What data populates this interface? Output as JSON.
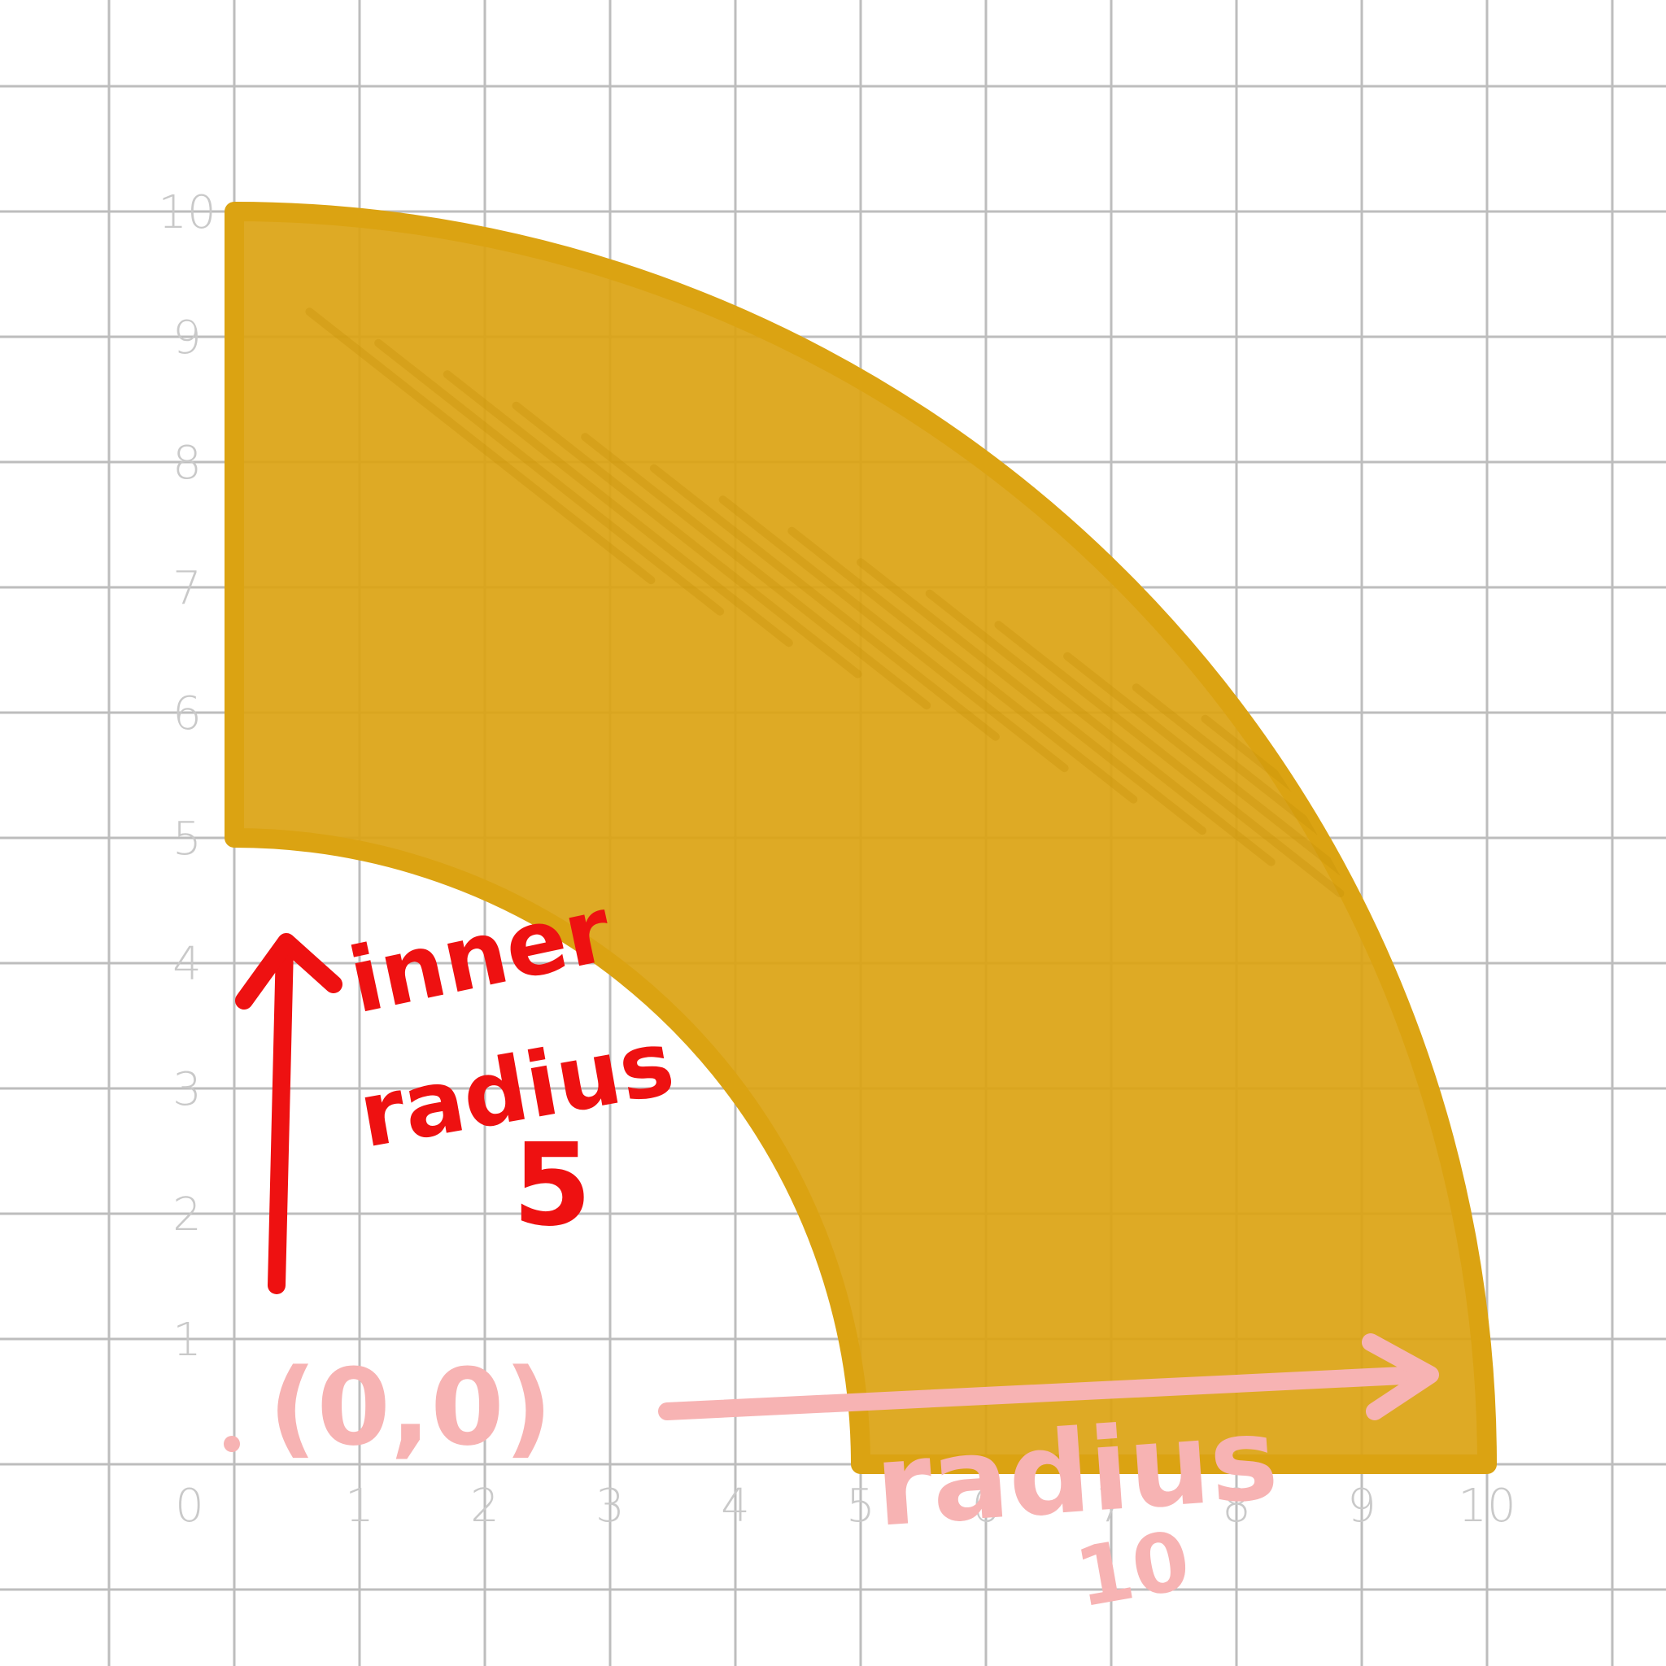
{
  "colors": {
    "grid": "#bdbdbd",
    "axis_labels": "#c9c9c9",
    "shape_fill": "#dba312",
    "inner_arrow": "#ee1111",
    "outer_arrow": "#f7b3b3"
  },
  "axes": {
    "x_ticks": [
      "0",
      "1",
      "2",
      "3",
      "4",
      "5",
      "6",
      "7",
      "8",
      "9",
      "10"
    ],
    "y_ticks": [
      "0",
      "1",
      "2",
      "3",
      "4",
      "5",
      "6",
      "7",
      "8",
      "9",
      "10"
    ],
    "range": [
      0,
      10
    ]
  },
  "shape": {
    "type": "annular-sector",
    "inner_radius": 5,
    "outer_radius": 10,
    "start_angle_deg": 0,
    "end_angle_deg": 90,
    "top_edge": "inner corner at (0,5) connected to (0,10)",
    "style": "hand-drawn scribble fill"
  },
  "annotations": {
    "inner_line1": "inner",
    "inner_line2": "radius",
    "inner_value": "5",
    "origin_label": "(0,0)",
    "outer_label": "radius",
    "outer_value": "10"
  }
}
